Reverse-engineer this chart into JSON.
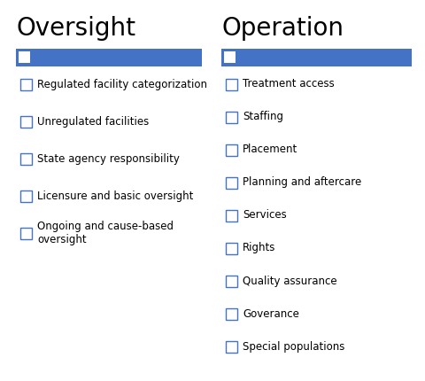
{
  "title_left": "Oversight",
  "title_right": "Operation",
  "bar_color": "#4472C4",
  "checkbox_color_fill": "white",
  "checkbox_color_edge": "#4472C4",
  "left_items": [
    "Regulated facility categorization",
    "Unregulated facilities",
    "State agency responsibility",
    "Licensure and basic oversight",
    "Ongoing and cause-based\noversight"
  ],
  "right_items": [
    "Treatment access",
    "Staffing",
    "Placement",
    "Planning and aftercare",
    "Services",
    "Rights",
    "Quality assurance",
    "Goverance",
    "Special populations"
  ],
  "bg_color": "white",
  "text_color": "black"
}
